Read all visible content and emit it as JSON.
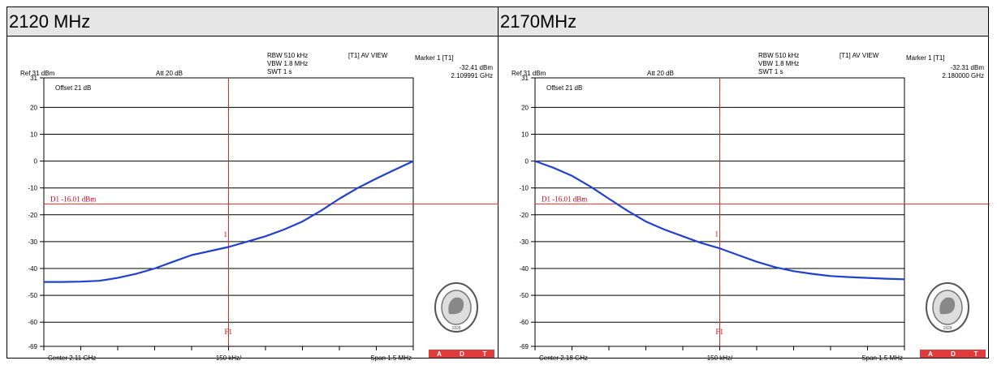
{
  "headers": [
    "2120 MHz",
    "2170MHz"
  ],
  "chart_data": [
    {
      "type": "line",
      "title": "2120 MHz",
      "info": {
        "ref": "Ref 31 dBm",
        "att": "Att 20 dB",
        "offset": "Offset 21 dB",
        "rbw": "RBW 510 kHz",
        "vbw": "VBW 1.8 MHz",
        "swt": "SWT 1 s",
        "trace_mode": "[T1] AV VIEW",
        "marker_label": "Marker 1 [T1]",
        "marker_level": "-32.41 dBm",
        "marker_freq": "2.109991 GHz",
        "center": "Center 2.11 GHz",
        "per_div": "150 kHz/",
        "span": "Span 1.5 MHz"
      },
      "ylim": [
        -69,
        31
      ],
      "y_ticks": [
        31,
        20,
        10,
        0,
        -10,
        -20,
        -30,
        -40,
        -50,
        -60,
        -69
      ],
      "x_divisions": 10,
      "limit_line": {
        "value": -16.01,
        "label": "D1 -16.01 dBm"
      },
      "marker": {
        "division": 5,
        "value": -32.41,
        "label": "1",
        "f_label": "F1"
      },
      "series": [
        {
          "color": "#2040d0",
          "x": [
            0,
            0.5,
            1,
            1.5,
            2,
            2.5,
            3,
            3.5,
            4,
            4.5,
            5,
            5.5,
            6,
            6.5,
            7,
            7.5,
            8,
            8.5,
            9,
            9.5,
            10
          ],
          "y": [
            -45,
            -45,
            -44.9,
            -44.6,
            -43.5,
            -42,
            -40,
            -37.5,
            -35,
            -33.5,
            -32,
            -30,
            -28,
            -25.5,
            -22.5,
            -18.5,
            -14,
            -10,
            -6.5,
            -3.2,
            0
          ]
        }
      ]
    },
    {
      "type": "line",
      "title": "2170MHz",
      "info": {
        "ref": "Ref 31 dBm",
        "att": "Att 20 dB",
        "offset": "Offset 21 dB",
        "rbw": "RBW 510 kHz",
        "vbw": "VBW 1.8 MHz",
        "swt": "SWT 1 s",
        "trace_mode": "[T1] AV VIEW",
        "marker_label": "Marker 1 [T1]",
        "marker_level": "-32.31 dBm",
        "marker_freq": "2.180000 GHz",
        "center": "Center 2.18 GHz",
        "per_div": "150 kHz/",
        "span": "Span 1.5 MHz"
      },
      "ylim": [
        -69,
        31
      ],
      "y_ticks": [
        31,
        20,
        10,
        0,
        -10,
        -20,
        -30,
        -40,
        -50,
        -60,
        -69
      ],
      "x_divisions": 10,
      "limit_line": {
        "value": -16.01,
        "label": "D1 -16.01 dBm"
      },
      "marker": {
        "division": 5,
        "value": -32.31,
        "label": "1",
        "f_label": "F1"
      },
      "series": [
        {
          "color": "#2040d0",
          "x": [
            0,
            0.5,
            1,
            1.5,
            2,
            2.5,
            3,
            3.5,
            4,
            4.5,
            5,
            5.5,
            6,
            6.5,
            7,
            7.5,
            8,
            8.5,
            9,
            9.5,
            10
          ],
          "y": [
            0,
            -2.5,
            -5.5,
            -9.5,
            -14,
            -18.5,
            -22.5,
            -25.5,
            -28,
            -30.5,
            -32.5,
            -35,
            -37.5,
            -39.5,
            -41,
            -42,
            -42.8,
            -43.2,
            -43.5,
            -43.8,
            -44
          ]
        }
      ]
    }
  ],
  "logo": {
    "seal_text": "BUREAU VERITAS",
    "year": "1828",
    "badge_letters": [
      "A",
      "D",
      "T"
    ],
    "badge_color": "#e23b3b"
  }
}
